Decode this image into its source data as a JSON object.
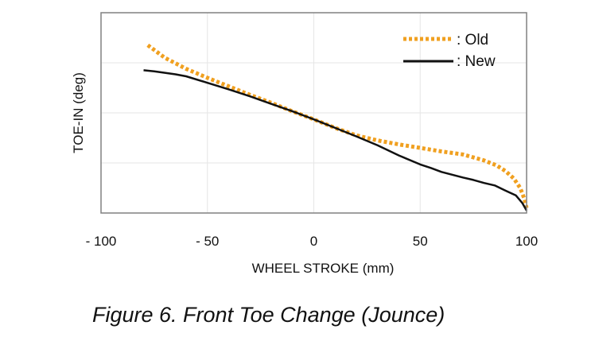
{
  "chart_data": {
    "type": "line",
    "xlabel": "WHEEL STROKE (mm)",
    "ylabel": "TOE-IN (deg)",
    "xlim": [
      -100,
      100
    ],
    "ylim": [
      0,
      4
    ],
    "x_ticks": [
      "- 100",
      "- 50",
      "0",
      "50",
      "100"
    ],
    "x_tick_values": [
      -100,
      -50,
      0,
      50,
      100
    ],
    "y_grid_values": [
      1,
      2,
      3
    ],
    "grid": true,
    "legend_position": "top-right",
    "series": [
      {
        "name": ": Old",
        "color": "#F0A020",
        "style": "dotted",
        "x": [
          -78,
          -70,
          -60,
          -50,
          -40,
          -30,
          -20,
          -10,
          0,
          10,
          20,
          30,
          40,
          50,
          60,
          70,
          80,
          86,
          90,
          94,
          97,
          99,
          100
        ],
        "y": [
          3.35,
          3.1,
          2.88,
          2.7,
          2.53,
          2.36,
          2.2,
          2.03,
          1.87,
          1.7,
          1.55,
          1.45,
          1.37,
          1.3,
          1.23,
          1.17,
          1.05,
          0.95,
          0.84,
          0.69,
          0.5,
          0.28,
          0.1
        ]
      },
      {
        "name": ": New",
        "color": "#111111",
        "style": "solid",
        "x": [
          -80,
          -75,
          -70,
          -65,
          -60,
          -50,
          -40,
          -30,
          -20,
          -10,
          0,
          10,
          20,
          30,
          40,
          50,
          55,
          60,
          70,
          75,
          80,
          85,
          90,
          95,
          98,
          100
        ],
        "y": [
          2.85,
          2.83,
          2.8,
          2.77,
          2.73,
          2.6,
          2.47,
          2.33,
          2.18,
          2.03,
          1.87,
          1.7,
          1.53,
          1.35,
          1.15,
          0.97,
          0.9,
          0.82,
          0.71,
          0.66,
          0.6,
          0.55,
          0.45,
          0.35,
          0.2,
          0.05
        ]
      }
    ]
  },
  "caption": "Figure 6. Front Toe Change (Jounce)"
}
